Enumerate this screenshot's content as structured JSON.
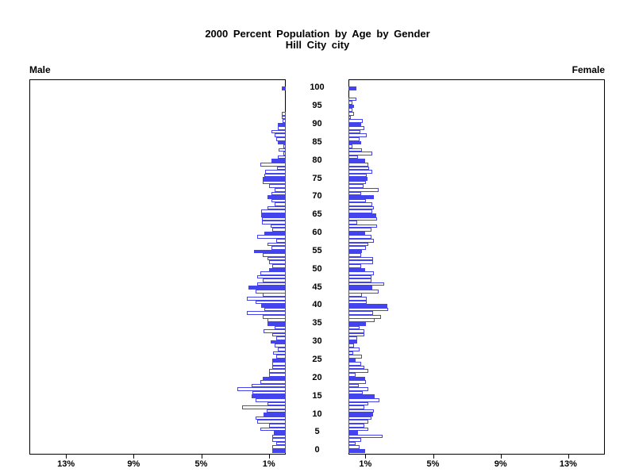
{
  "title": {
    "line1": "2000 Percent Population by Age by Gender",
    "line2": "Hill City city"
  },
  "panels": {
    "left_header": "Male",
    "right_header": "Female"
  },
  "axis": {
    "left_tick_labels": [
      "13%",
      "9%",
      "5%",
      "1%"
    ],
    "right_tick_labels": [
      "1%",
      "5%",
      "9%",
      "13%"
    ],
    "tick_values": [
      1,
      5,
      9,
      13
    ],
    "age_tick_step": 5,
    "age_tick_labels": [
      "0",
      "5",
      "10",
      "15",
      "20",
      "25",
      "30",
      "35",
      "40",
      "45",
      "50",
      "55",
      "60",
      "65",
      "70",
      "75",
      "80",
      "85",
      "90",
      "95",
      "100"
    ]
  },
  "colors": {
    "bar_outline": "#4444ee",
    "bar_fill_highlight": "#4444ee",
    "bar_fill_normal": "#ffffff",
    "axis_color": "#000000",
    "text_color": "#000000"
  },
  "chart_data": {
    "type": "bar",
    "variant": "population-pyramid",
    "title": "2000 Percent Population by Age by Gender",
    "subtitle": "Hill City city",
    "x_unit": "percent",
    "xlim": [
      0,
      15.2
    ],
    "age_min": 0,
    "age_max": 100,
    "highlight_age_multiple": 5,
    "legend": "none",
    "series": [
      {
        "name": "Male",
        "side": "left",
        "values_by_age_0_to_100": [
          0.8,
          0.8,
          0.55,
          0.8,
          0.8,
          0.7,
          1.5,
          1.0,
          1.7,
          1.8,
          1.3,
          1.15,
          2.6,
          1.1,
          1.8,
          2.0,
          1.95,
          2.85,
          2.0,
          1.5,
          1.35,
          1.0,
          1.0,
          0.8,
          0.8,
          0.8,
          0.55,
          0.75,
          0.45,
          0.65,
          0.9,
          0.55,
          0.8,
          1.3,
          0.65,
          1.1,
          1.1,
          1.35,
          2.3,
          1.25,
          1.45,
          1.8,
          2.3,
          1.35,
          1.8,
          2.2,
          1.7,
          1.35,
          1.7,
          1.5,
          1.0,
          0.8,
          1.0,
          1.1,
          1.35,
          1.9,
          0.85,
          1.1,
          0.55,
          1.7,
          1.25,
          0.8,
          0.9,
          1.4,
          1.4,
          1.45,
          1.45,
          1.1,
          0.65,
          0.85,
          1.1,
          0.85,
          0.65,
          1.0,
          1.35,
          1.35,
          1.25,
          1.2,
          0.5,
          1.5,
          0.85,
          0.45,
          0.12,
          0.4,
          0.12,
          0.45,
          0.55,
          0.65,
          0.85,
          0.45,
          0.45,
          0.2,
          0.25,
          0.25,
          0,
          0,
          0,
          0,
          0,
          0,
          0.25
        ]
      },
      {
        "name": "Female",
        "side": "right",
        "values_by_age_0_to_100": [
          1.0,
          0.64,
          0.42,
          0.74,
          2.0,
          0.55,
          1.16,
          0.95,
          1.16,
          1.36,
          1.47,
          1.5,
          0.95,
          1.16,
          1.85,
          1.57,
          0.84,
          1.16,
          0.6,
          1.05,
          1.0,
          0.42,
          1.16,
          0.95,
          0.74,
          0.42,
          0.8,
          0.3,
          0.64,
          0.33,
          0.53,
          0.53,
          0.95,
          0.95,
          0.64,
          1.05,
          1.55,
          1.94,
          1.47,
          2.36,
          2.3,
          1.1,
          1.1,
          0.8,
          1.78,
          1.42,
          2.1,
          1.36,
          1.36,
          1.5,
          1.0,
          0.74,
          1.47,
          1.47,
          0.76,
          0.8,
          1.05,
          1.16,
          1.5,
          1.36,
          1.0,
          1.36,
          1.67,
          0.53,
          1.7,
          1.63,
          1.42,
          1.5,
          1.42,
          1.05,
          1.5,
          0.74,
          1.78,
          0.9,
          1.05,
          1.15,
          1.1,
          1.42,
          1.2,
          1.16,
          1.0,
          0.55,
          1.42,
          0.8,
          0.22,
          0.74,
          0.64,
          1.1,
          0.7,
          0.95,
          0.74,
          0.85,
          0.15,
          0.33,
          0.22,
          0.33,
          0.22,
          0.48,
          0,
          0,
          0.45
        ]
      }
    ]
  }
}
